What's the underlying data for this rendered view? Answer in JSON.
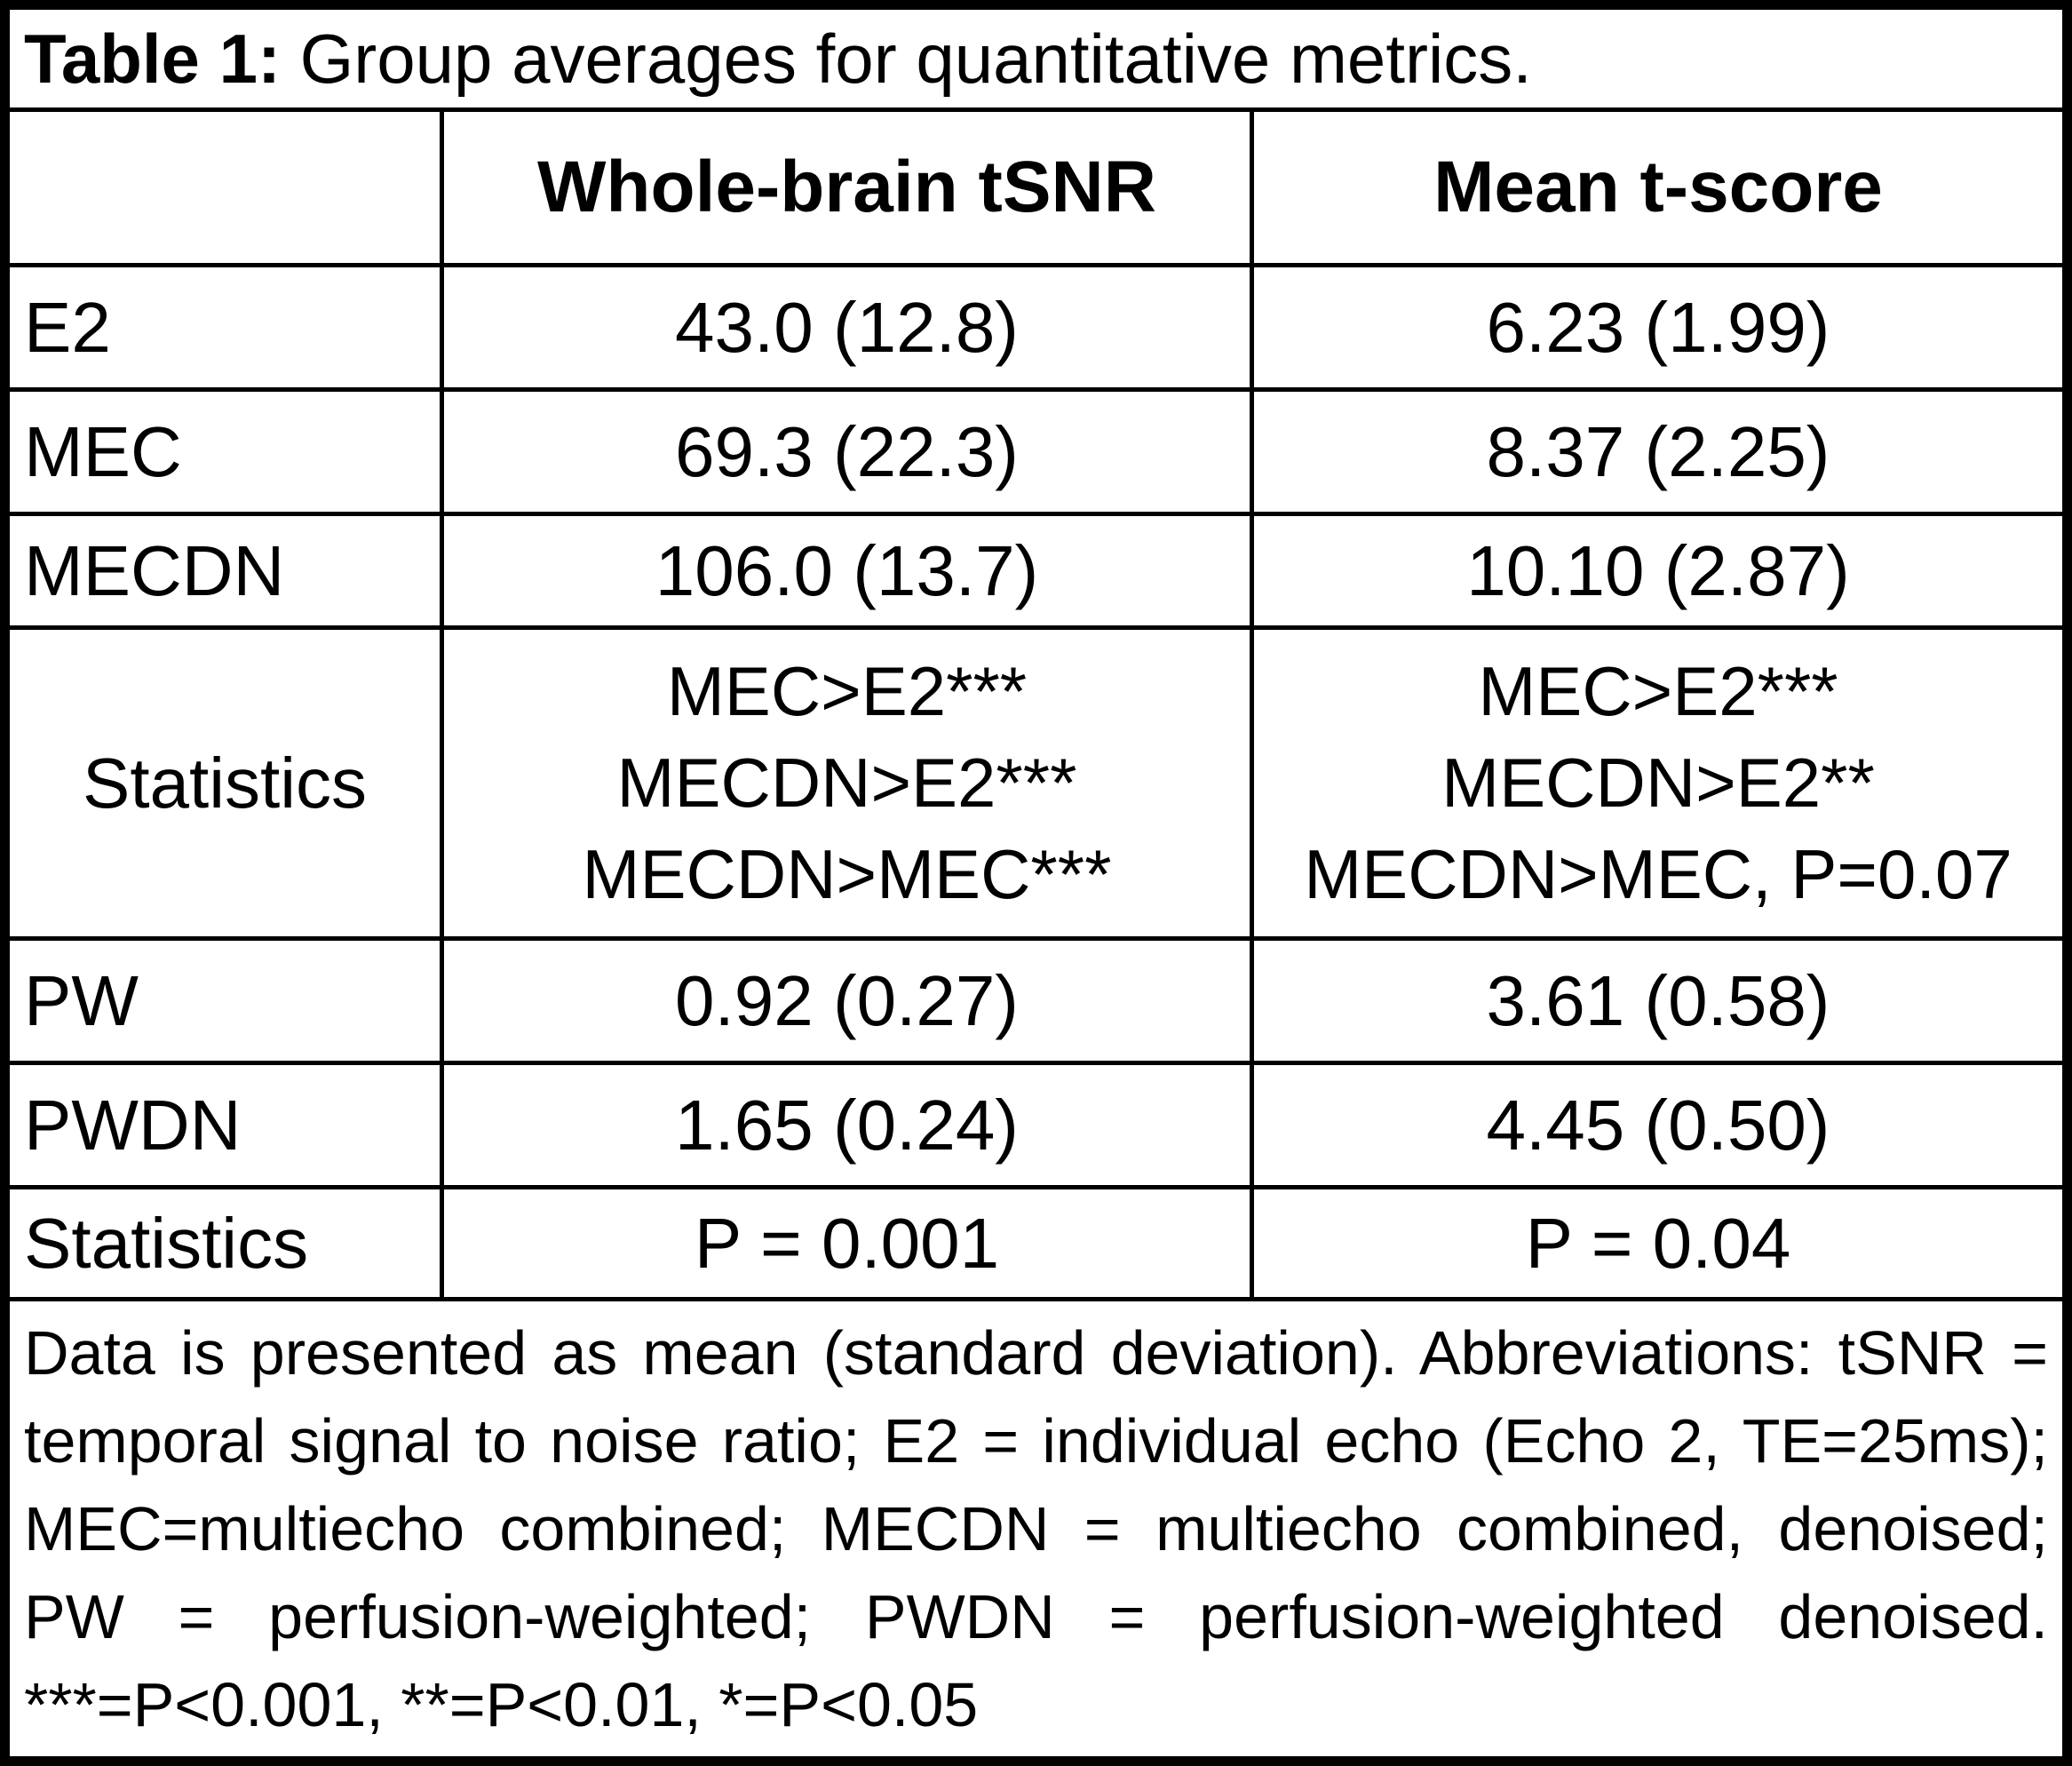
{
  "title": {
    "prefix": "Table 1:",
    "text": " Group averages for quantitative metrics."
  },
  "columns": {
    "label": "",
    "tsnr": "Whole-brain tSNR",
    "tscore": "Mean t-score"
  },
  "rows": {
    "e2": {
      "label": "E2",
      "tsnr": "43.0 (12.8)",
      "tscore": "6.23 (1.99)"
    },
    "mec": {
      "label": "MEC",
      "tsnr": "69.3 (22.3)",
      "tscore": "8.37 (2.25)"
    },
    "mecdn": {
      "label": "MECDN",
      "tsnr": "106.0 (13.7)",
      "tscore": "10.10 (2.87)"
    },
    "pw": {
      "label": "PW",
      "tsnr": "0.92 (0.27)",
      "tscore": "3.61 (0.58)"
    },
    "pwdn": {
      "label": "PWDN",
      "tsnr": "1.65 (0.24)",
      "tscore": "4.45 (0.50)"
    }
  },
  "stats1": {
    "label": "Statistics",
    "tsnr_lines": [
      "MEC>E2***",
      "MECDN>E2***",
      "MECDN>MEC***"
    ],
    "tscore_lines": [
      "MEC>E2***",
      "MECDN>E2**",
      "MECDN>MEC, P=0.07"
    ]
  },
  "stats2": {
    "label": "Statistics",
    "tsnr": "P = 0.001",
    "tscore": "P = 0.04"
  },
  "footnote": "Data is presented as mean (standard deviation). Abbreviations: tSNR = temporal signal to noise ratio; E2 = individual echo (Echo 2, TE=25ms); MEC=multiecho combined; MECDN = multiecho combined, denoised; PW = perfusion-weighted; PWDN = perfusion-weighted denoised. ***=P<0.001, **=P<0.01, *=P<0.05",
  "colors": {
    "border": "#000000",
    "text": "#000000",
    "background": "#ffffff"
  }
}
